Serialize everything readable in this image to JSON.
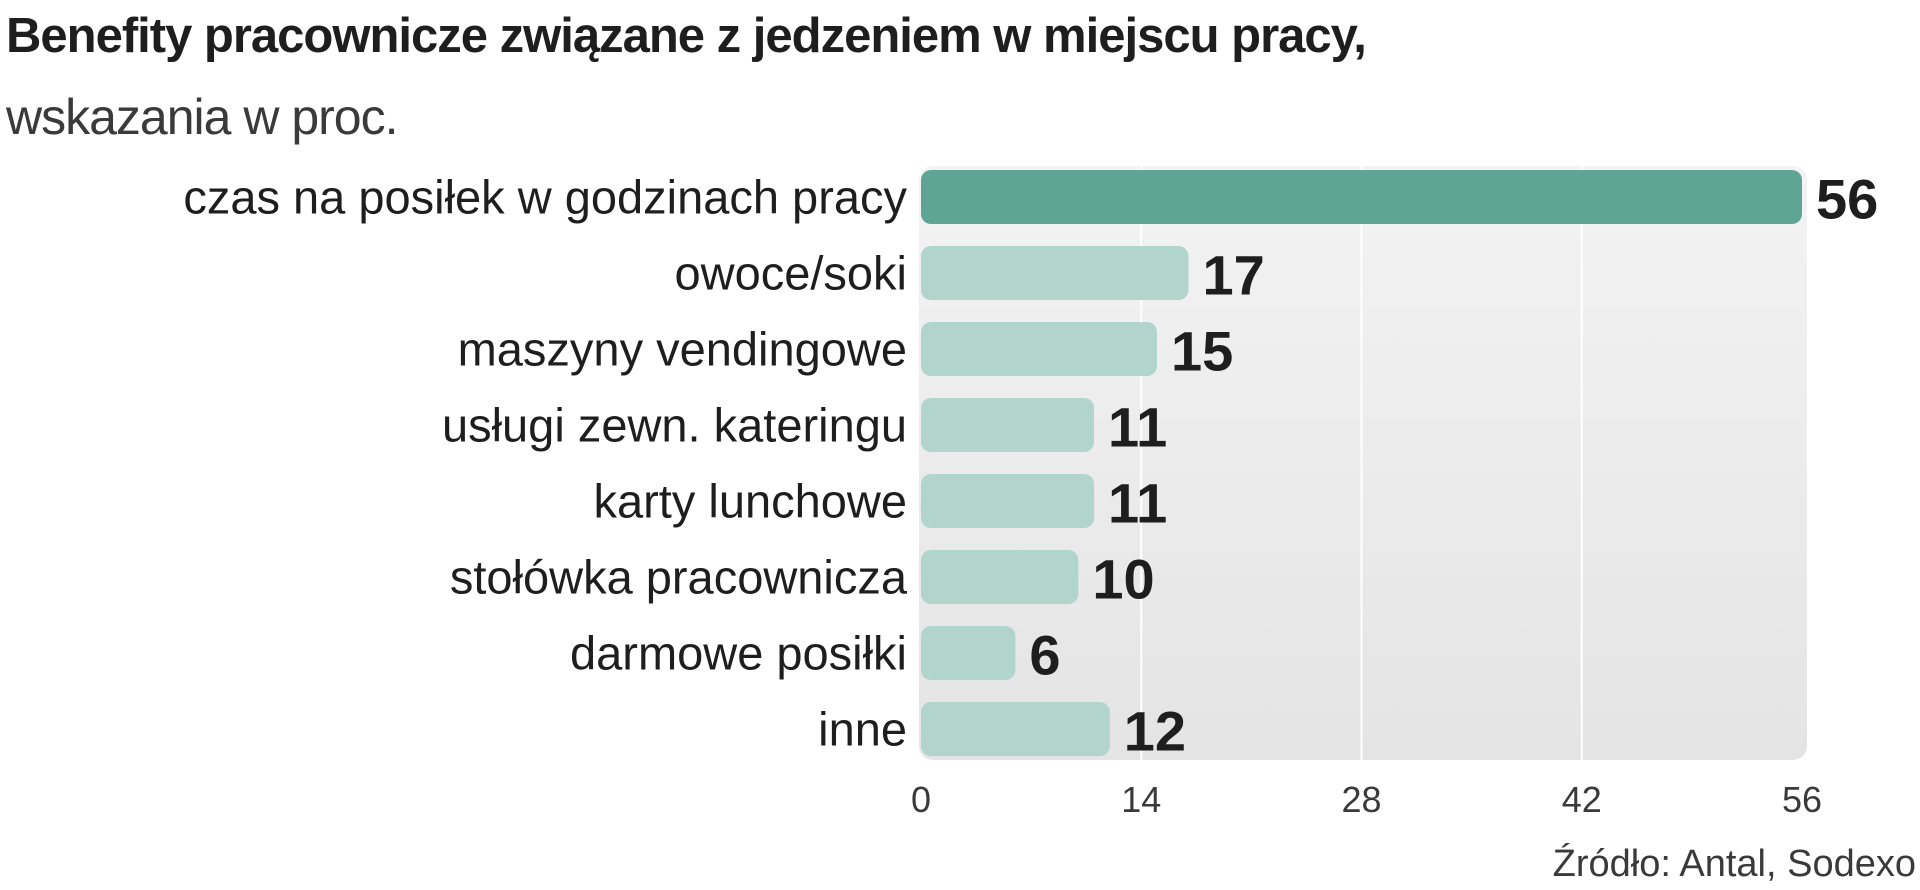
{
  "title": "Benefity pracownicze związane z jedzeniem w miejscu pracy,",
  "subtitle": "wskazania w proc.",
  "source": "Źródło: Antal, Sodexo",
  "chart_data": {
    "type": "bar",
    "orientation": "horizontal",
    "categories": [
      "czas na posiłek  w godzinach pracy",
      "owoce/soki",
      "maszyny vendingowe",
      "usługi zewn. kateringu",
      "karty lunchowe",
      "stołówka pracownicza",
      "darmowe posiłki",
      "inne"
    ],
    "values": [
      56,
      17,
      15,
      11,
      11,
      10,
      6,
      12
    ],
    "xlim": [
      0,
      56
    ],
    "xticks": [
      "0",
      "14",
      "28",
      "42",
      "56"
    ],
    "highlight_index": 0,
    "grid": true,
    "colors": {
      "highlight": "#5fa596",
      "bar": "#b1d5cc",
      "panel": "#ececec",
      "gridline": "#ffffff",
      "text": "#1e1e1e"
    }
  }
}
